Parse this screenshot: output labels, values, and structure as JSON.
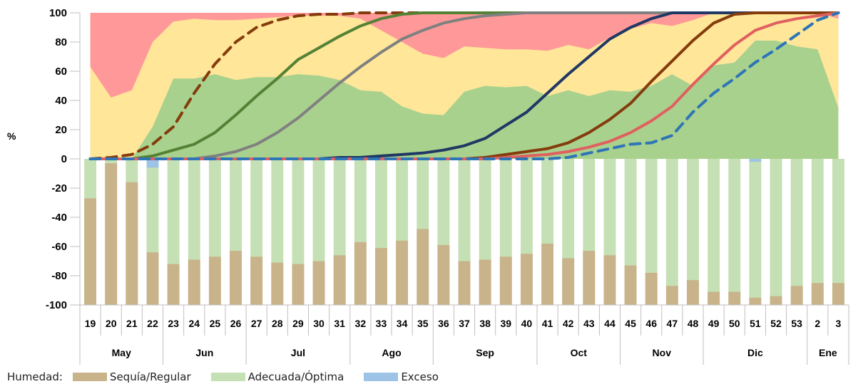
{
  "chart_data": {
    "type": "bar",
    "ylabel": "%",
    "ylim": [
      -100,
      100
    ],
    "yticks": [
      100,
      80,
      60,
      40,
      20,
      0,
      -20,
      -40,
      -60,
      -80,
      -100
    ],
    "x_weeks": [
      "19",
      "20",
      "21",
      "22",
      "23",
      "24",
      "25",
      "26",
      "27",
      "28",
      "29",
      "30",
      "31",
      "32",
      "33",
      "34",
      "35",
      "36",
      "37",
      "38",
      "39",
      "40",
      "41",
      "42",
      "43",
      "44",
      "45",
      "46",
      "47",
      "48",
      "49",
      "50",
      "51",
      "52",
      "53",
      "2",
      "3"
    ],
    "months": [
      {
        "label": "May",
        "start": 0,
        "end": 3
      },
      {
        "label": "Jun",
        "start": 4,
        "end": 7
      },
      {
        "label": "Jul",
        "start": 8,
        "end": 12
      },
      {
        "label": "Ago",
        "start": 13,
        "end": 16
      },
      {
        "label": "Sep",
        "start": 17,
        "end": 21
      },
      {
        "label": "Oct",
        "start": 22,
        "end": 25
      },
      {
        "label": "Nov",
        "start": 26,
        "end": 29
      },
      {
        "label": "Dic",
        "start": 30,
        "end": 34
      },
      {
        "label": "Ene",
        "start": 35,
        "end": 36
      }
    ],
    "legend": {
      "title": "Humedad:",
      "items": [
        {
          "name": "Sequía/Regular",
          "color": "#c9b38a"
        },
        {
          "name": "Adecuada/Óptima",
          "color": "#c5e0b4"
        },
        {
          "name": "Exceso",
          "color": "#9dc3e6"
        }
      ]
    },
    "bars": {
      "sequia": [
        -27,
        -3,
        -16,
        -64,
        -72,
        -69,
        -67,
        -63,
        -67,
        -71,
        -72,
        -70,
        -66,
        -57,
        -61,
        -56,
        -48,
        -59,
        -70,
        -69,
        -67,
        -65,
        -58,
        -68,
        -63,
        -66,
        -73,
        -78,
        -87,
        -83,
        -91,
        -91,
        -95,
        -94,
        -87,
        -85,
        -85
      ],
      "exceso": [
        0,
        0,
        0,
        -6,
        0,
        0,
        0,
        0,
        0,
        0,
        0,
        0,
        0,
        0,
        0,
        0,
        0,
        0,
        0,
        0,
        0,
        0,
        0,
        0,
        0,
        0,
        0,
        0,
        0,
        0,
        0,
        0,
        -2,
        0,
        0,
        0,
        0
      ]
    },
    "area": {
      "green_top": [
        0,
        0,
        0,
        22,
        55,
        55,
        58,
        54,
        56,
        56,
        58,
        57,
        54,
        47,
        46,
        36,
        31,
        30,
        46,
        50,
        49,
        50,
        43,
        47,
        43,
        47,
        46,
        50,
        58,
        50,
        64,
        66,
        81,
        81,
        77,
        75,
        35
      ],
      "yellow_top": [
        63,
        42,
        47,
        80,
        94,
        96,
        95,
        95,
        96,
        97,
        98,
        98,
        98,
        96,
        88,
        80,
        72,
        69,
        77,
        76,
        75,
        75,
        74,
        78,
        75,
        83,
        89,
        93,
        91,
        95,
        100,
        100,
        100,
        100,
        100,
        100,
        96
      ],
      "colors": {
        "red": "#ff9999",
        "yellow": "#ffe699",
        "green": "#a9d18e"
      }
    },
    "series": [
      {
        "color": "#843c0c",
        "dashed": true,
        "values": [
          0,
          1,
          3,
          10,
          22,
          45,
          65,
          80,
          90,
          95,
          98,
          99,
          99,
          100,
          100,
          100,
          100,
          100,
          100,
          100,
          100,
          100,
          100,
          100,
          100,
          100,
          100,
          100,
          100,
          100,
          100,
          100,
          100,
          100,
          100,
          100,
          100
        ]
      },
      {
        "color": "#548235",
        "dashed": false,
        "values": [
          0,
          0,
          0,
          2,
          6,
          10,
          18,
          30,
          43,
          55,
          68,
          76,
          84,
          91,
          96,
          99,
          100,
          100,
          100,
          100,
          100,
          100,
          100,
          100,
          100,
          100,
          100,
          100,
          100,
          100,
          100,
          100,
          100,
          100,
          100,
          100,
          100
        ]
      },
      {
        "color": "#808080",
        "dashed": false,
        "values": [
          0,
          0,
          0,
          0,
          0,
          0,
          2,
          5,
          10,
          18,
          28,
          40,
          52,
          63,
          73,
          82,
          88,
          93,
          96,
          98,
          99,
          100,
          100,
          100,
          100,
          100,
          100,
          100,
          100,
          100,
          100,
          100,
          100,
          100,
          100,
          100,
          100
        ]
      },
      {
        "color": "#1f3864",
        "dashed": false,
        "values": [
          0,
          0,
          0,
          0,
          0,
          0,
          0,
          0,
          0,
          0,
          0,
          0,
          1,
          1,
          2,
          3,
          4,
          6,
          9,
          14,
          23,
          32,
          45,
          58,
          70,
          82,
          90,
          96,
          100,
          100,
          100,
          100,
          100,
          100,
          100,
          100,
          100
        ]
      },
      {
        "color": "#843c0c",
        "dashed": false,
        "values": [
          0,
          0,
          0,
          0,
          0,
          0,
          0,
          0,
          0,
          0,
          0,
          0,
          0,
          0,
          0,
          0,
          0,
          0,
          0,
          1,
          3,
          5,
          7,
          11,
          18,
          27,
          38,
          53,
          67,
          81,
          93,
          99,
          100,
          100,
          100,
          100,
          100
        ]
      },
      {
        "color": "#e06060",
        "dashed": false,
        "values": [
          0,
          0,
          0,
          0,
          0,
          0,
          0,
          0,
          0,
          0,
          0,
          0,
          0,
          0,
          0,
          0,
          0,
          0,
          0,
          0,
          1,
          2,
          3,
          5,
          8,
          12,
          18,
          26,
          36,
          51,
          65,
          78,
          88,
          93,
          96,
          98,
          100
        ]
      },
      {
        "color": "#2e75b6",
        "dashed": true,
        "values": [
          0,
          0,
          0,
          0,
          0,
          0,
          0,
          0,
          0,
          0,
          0,
          0,
          0,
          0,
          0,
          0,
          0,
          0,
          0,
          0,
          0,
          0,
          0,
          1,
          4,
          7,
          10,
          11,
          16,
          32,
          45,
          55,
          66,
          75,
          85,
          95,
          100
        ]
      }
    ]
  }
}
